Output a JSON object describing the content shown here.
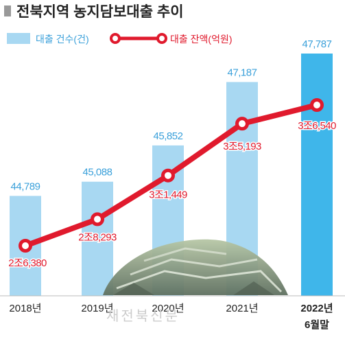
{
  "chart_data": {
    "type": "bar+line",
    "title": "전북지역 농지담보대출 추이",
    "categories": [
      "2018년",
      "2019년",
      "2020년",
      "2021년",
      "2022년"
    ],
    "category_sublabels": [
      "",
      "",
      "",
      "",
      "6월말"
    ],
    "series": [
      {
        "name": "대출 건수(건)",
        "type": "bar",
        "values": [
          44789,
          45088,
          45852,
          47187,
          47787
        ],
        "labels": [
          "44,789",
          "45,088",
          "45,852",
          "47,187",
          "47,787"
        ]
      },
      {
        "name": "대출 잔액(억원)",
        "type": "line",
        "values": [
          26380,
          28293,
          31449,
          35193,
          36540
        ],
        "labels": [
          "2조6,380",
          "2조8,293",
          "3조1,449",
          "3조5,193",
          "3조6,540"
        ]
      }
    ],
    "legend_position": "top-left",
    "watermark": "새전북신문",
    "colors": {
      "bar": "#a8d8f2",
      "bar_last": "#3fb6ea",
      "bar_label": "#3aa0da",
      "line": "#e01a2d",
      "title_marker": "#999999",
      "text": "#222222"
    }
  }
}
